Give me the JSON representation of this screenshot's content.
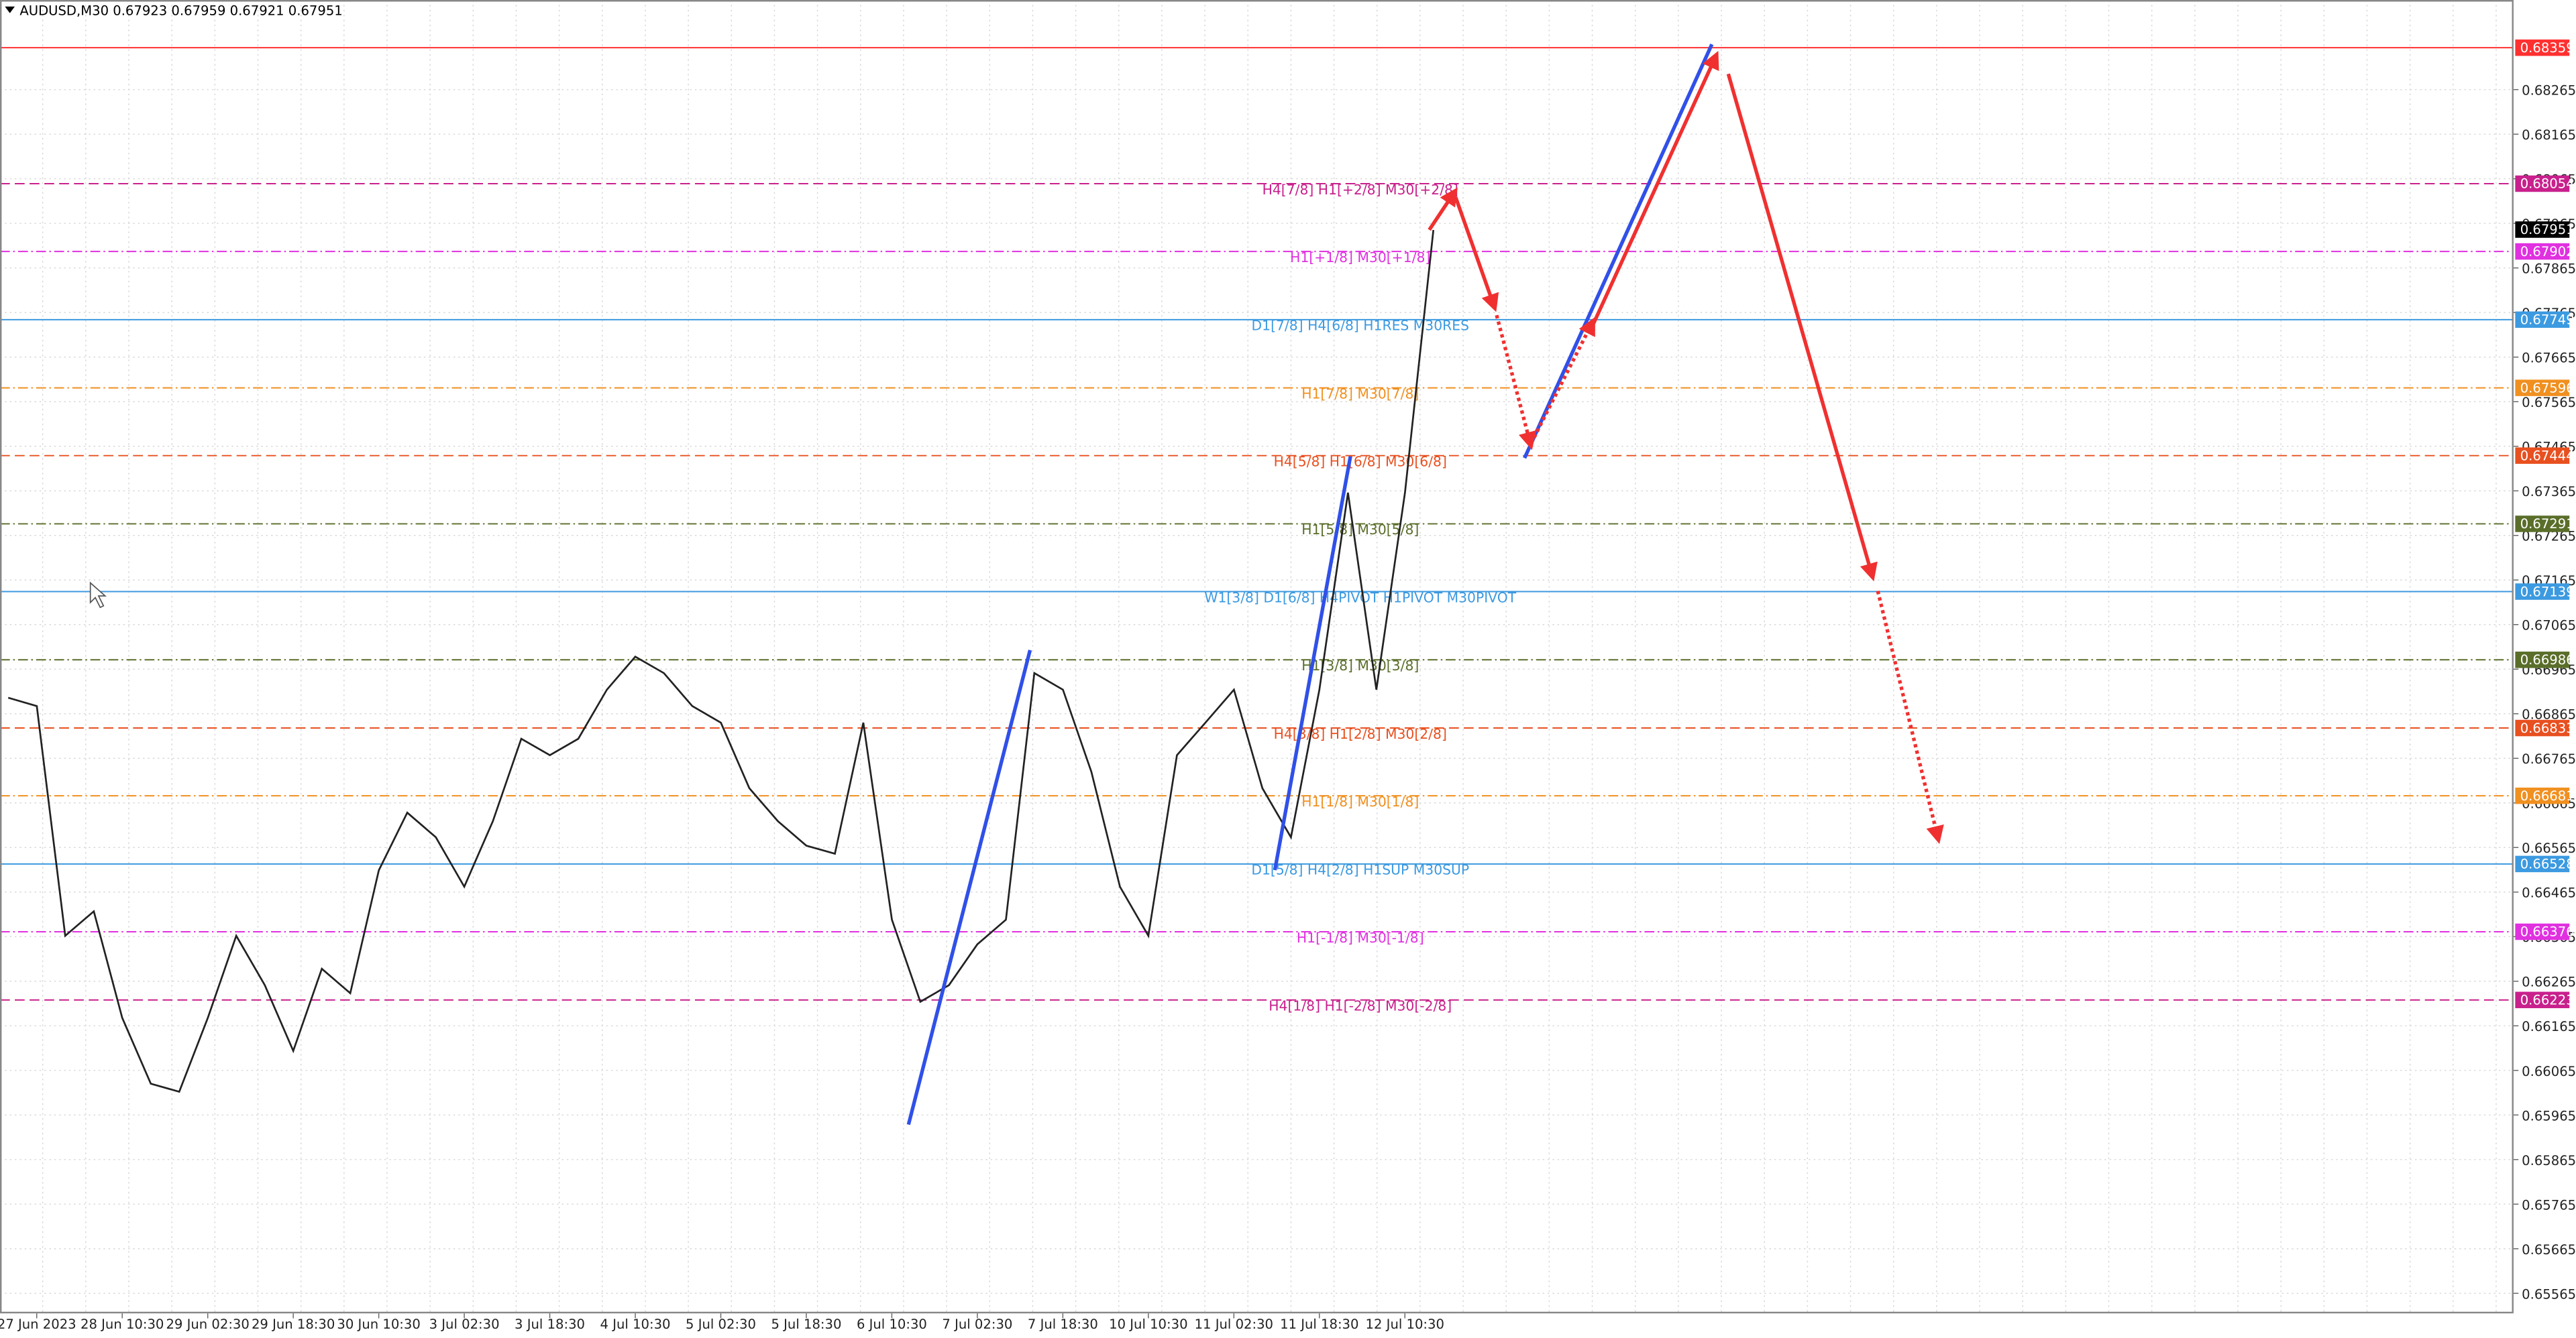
{
  "chart_data": {
    "type": "line",
    "title": "AUDUSD,M30  0.67923 0.67959 0.67921 0.67951",
    "color": "#222222",
    "grid": true,
    "categories": [
      null,
      "27 Jun 2023",
      null,
      null,
      "28 Jun 10:30",
      null,
      null,
      "29 Jun 02:30",
      null,
      null,
      "29 Jun 18:30",
      null,
      null,
      "30 Jun 10:30",
      null,
      null,
      "3 Jul 02:30",
      null,
      null,
      "3 Jul 18:30",
      null,
      null,
      "4 Jul 10:30",
      null,
      null,
      "5 Jul 02:30",
      null,
      null,
      "5 Jul 18:30",
      null,
      null,
      "6 Jul 10:30",
      null,
      null,
      "7 Jul 02:30",
      null,
      null,
      "7 Jul 18:30",
      null,
      null,
      "10 Jul 10:30",
      null,
      null,
      "11 Jul 02:30",
      null,
      null,
      "11 Jul 18:30",
      null,
      null,
      "12 Jul 10:30",
      null
    ],
    "values": [
      0.66901,
      0.66882,
      0.66367,
      0.66422,
      0.66183,
      0.66035,
      0.66017,
      0.66183,
      0.66367,
      0.66256,
      0.66109,
      0.66293,
      0.66238,
      0.66514,
      0.66643,
      0.66588,
      0.66477,
      0.66624,
      0.66809,
      0.66772,
      0.66809,
      0.66919,
      0.66993,
      0.66956,
      0.66882,
      0.66845,
      0.66698,
      0.66624,
      0.66569,
      0.66551,
      0.66845,
      0.66403,
      0.66219,
      0.66256,
      0.66348,
      0.66403,
      0.66956,
      0.66919,
      0.66735,
      0.66477,
      0.66367,
      0.66772,
      0.66845,
      0.66919,
      0.66698,
      0.66588,
      0.66919,
      0.67361,
      0.66919,
      0.67361,
      0.6795
    ],
    "ylim": [
      0.6552,
      0.68466
    ],
    "yticks": [
      0.68265,
      0.68165,
      0.68065,
      0.67965,
      0.67865,
      0.67765,
      0.67665,
      0.67565,
      0.67465,
      0.67365,
      0.67265,
      0.67165,
      0.67065,
      0.66965,
      0.66865,
      0.66765,
      0.66665,
      0.66565,
      0.66465,
      0.66365,
      0.66265,
      0.66165,
      0.66065,
      0.65965,
      0.65865,
      0.65765,
      0.65665,
      0.65565
    ],
    "current_price": {
      "value": 0.67951,
      "color": "#000000"
    },
    "levels": [
      {
        "value": 0.68359,
        "color": "#ff3030",
        "style": "solid"
      },
      {
        "value": 0.68054,
        "text": "H4[7/8] H1[+2/8] M30[+2/8]",
        "color": "#c8208c",
        "style": "dashed"
      },
      {
        "value": 0.67902,
        "text": "H1[+1/8] M30[+1/8]",
        "color": "#e030e0",
        "style": "dashdot"
      },
      {
        "value": 0.67749,
        "text": "D1[7/8] H4[6/8] H1RES M30RES",
        "color": "#3c9ae0",
        "style": "solid"
      },
      {
        "value": 0.67596,
        "text": "H1[7/8] M30[7/8]",
        "color": "#f09020",
        "style": "dashdot"
      },
      {
        "value": 0.67444,
        "text": "H4[5/8] H1[6/8] M30[6/8]",
        "color": "#e85020",
        "style": "dashed"
      },
      {
        "value": 0.67291,
        "text": "H1[5/8] M30[5/8]",
        "color": "#5a6e2a",
        "style": "dashdot"
      },
      {
        "value": 0.67139,
        "text": "W1[3/8] D1[6/8] H4PIVOT H1PIVOT M30PIVOT",
        "color": "#3c9ae0",
        "style": "solid"
      },
      {
        "value": 0.66986,
        "text": "H1[3/8] M30[3/8]",
        "color": "#5a6e2a",
        "style": "dashdot"
      },
      {
        "value": 0.66833,
        "text": "H4[3/8] H1[2/8] M30[2/8]",
        "color": "#e85020",
        "style": "dashed"
      },
      {
        "value": 0.66681,
        "text": "H1[1/8] M30[1/8]",
        "color": "#f09020",
        "style": "dashdot"
      },
      {
        "value": 0.66528,
        "text": "D1[5/8] H4[2/8] H1SUP M30SUP",
        "color": "#3c9ae0",
        "style": "solid"
      },
      {
        "value": 0.66376,
        "text": "H1[-1/8] M30[-1/8]",
        "color": "#e030e0",
        "style": "dashdot"
      },
      {
        "value": 0.66223,
        "text": "H4[1/8] H1[-2/8] M30[-2/8]",
        "color": "#c8208c",
        "style": "dashed"
      }
    ]
  }
}
